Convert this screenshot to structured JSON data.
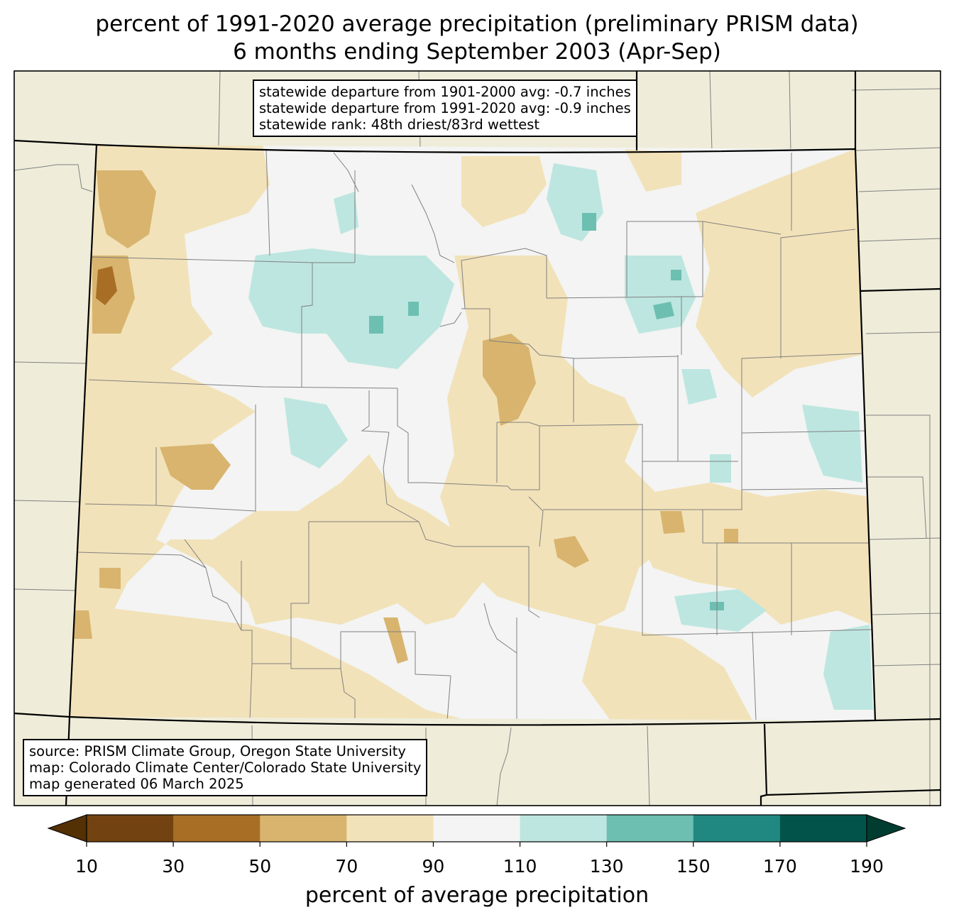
{
  "title": {
    "line1": "percent of 1991-2020 average precipitation (preliminary PRISM data)",
    "line2": "6 months ending September 2003 (Apr-Sep)"
  },
  "stats": {
    "line1": "statewide departure from 1901-2000 avg: -0.7 inches",
    "line2": "statewide departure from 1991-2020 avg: -0.9 inches",
    "line3": "statewide rank: 48th driest/83rd wettest"
  },
  "source": {
    "line1": "source: PRISM Climate Group, Oregon State University",
    "line2": "map: Colorado Climate Center/Colorado State University",
    "line3": "map generated 06 March 2025"
  },
  "colorbar": {
    "label": "percent of average precipitation",
    "ticks": [
      "10",
      "30",
      "50",
      "70",
      "90",
      "110",
      "130",
      "150",
      "170",
      "190"
    ],
    "colors": [
      "#724310",
      "#a96e26",
      "#d8b46e",
      "#f2e2b9",
      "#f3f4f3",
      "#bde6e0",
      "#6dbfb1",
      "#218881",
      "#02544a"
    ],
    "under_color": "#543005",
    "over_color": "#003c30"
  },
  "map_colors": {
    "background": "#efedda",
    "state_border": "#000000",
    "county_lines": "#808080"
  }
}
